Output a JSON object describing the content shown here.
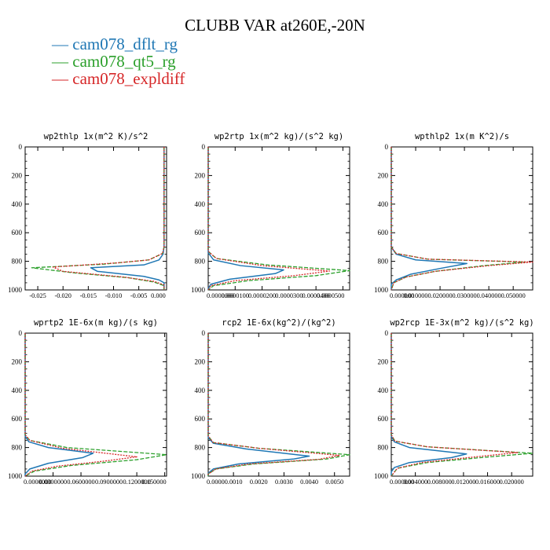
{
  "title": "CLUBB VAR at260E,-20N",
  "legend": [
    {
      "label": "— cam078_dflt_rg",
      "color": "#1f77b4"
    },
    {
      "label": "— cam078_qt5_rg",
      "color": "#2ca02c"
    },
    {
      "label": "— cam078_expldiff",
      "color": "#d62728"
    }
  ],
  "chart_data": [
    {
      "type": "line",
      "title": "wp2thlp  1x(m^2 K)/s^2",
      "xlim": [
        -0.0275,
        0.0005
      ],
      "ylim": [
        1000,
        0
      ],
      "yticks": [
        "0",
        "200",
        "400",
        "600",
        "800",
        "1000"
      ],
      "xticks": [
        {
          "v": -0.025,
          "label": "-0.025"
        },
        {
          "v": -0.02,
          "label": "-0.020"
        },
        {
          "v": -0.015,
          "label": "-0.015"
        },
        {
          "v": -0.01,
          "label": "-0.010"
        },
        {
          "v": -0.005,
          "label": "-0.005"
        },
        {
          "v": 0.0,
          "label": "0.000"
        }
      ],
      "series": [
        {
          "style": "solid",
          "color": "#1f77b4",
          "points": [
            [
              0,
              0
            ],
            [
              0,
              700
            ],
            [
              -0.0002,
              750
            ],
            [
              -0.001,
              790
            ],
            [
              -0.004,
              825
            ],
            [
              -0.0145,
              845
            ],
            [
              -0.0132,
              870
            ],
            [
              -0.004,
              905
            ],
            [
              -0.001,
              930
            ],
            [
              0,
              950
            ],
            [
              0,
              1000
            ]
          ]
        },
        {
          "style": "dashed",
          "color": "#2ca02c",
          "points": [
            [
              0,
              0
            ],
            [
              0,
              700
            ],
            [
              -0.0003,
              745
            ],
            [
              -0.003,
              790
            ],
            [
              -0.012,
              820
            ],
            [
              -0.0262,
              845
            ],
            [
              -0.018,
              880
            ],
            [
              -0.007,
              915
            ],
            [
              -0.002,
              945
            ],
            [
              0,
              970
            ],
            [
              0,
              1000
            ]
          ]
        },
        {
          "style": "dotted",
          "color": "#d62728",
          "points": [
            [
              0,
              0
            ],
            [
              0,
              700
            ],
            [
              -0.0003,
              745
            ],
            [
              -0.003,
              790
            ],
            [
              -0.009,
              810
            ],
            [
              -0.022,
              840
            ],
            [
              -0.02,
              870
            ],
            [
              -0.008,
              910
            ],
            [
              -0.002,
              940
            ],
            [
              0,
              965
            ],
            [
              0,
              1000
            ]
          ]
        }
      ]
    },
    {
      "type": "line",
      "title": "wp2rtp  1x(m^2 kg)/(s^2 kg)",
      "xlim": [
        0,
        5.25e-05
      ],
      "ylim": [
        1000,
        0
      ],
      "yticks": [
        "0",
        "200",
        "400",
        "600",
        "800",
        "1000"
      ],
      "xticks": [
        {
          "v": 0.0,
          "label": "0.0000000"
        },
        {
          "v": 1e-05,
          "label": "0.0000100"
        },
        {
          "v": 2e-05,
          "label": "0.0000200"
        },
        {
          "v": 3e-05,
          "label": "0.0000300"
        },
        {
          "v": 4e-05,
          "label": "0.0000400"
        },
        {
          "v": 5e-05,
          "label": "0.0000500"
        }
      ],
      "series": [
        {
          "style": "solid",
          "color": "#1f77b4",
          "points": [
            [
              0,
              0
            ],
            [
              0,
              740
            ],
            [
              2e-06,
              790
            ],
            [
              1.2e-05,
              830
            ],
            [
              2.8e-05,
              860
            ],
            [
              2.5e-05,
              885
            ],
            [
              8e-06,
              925
            ],
            [
              1e-06,
              960
            ],
            [
              0,
              990
            ],
            [
              0,
              1000
            ]
          ]
        },
        {
          "style": "dashed",
          "color": "#2ca02c",
          "points": [
            [
              0,
              0
            ],
            [
              0,
              730
            ],
            [
              3e-06,
              780
            ],
            [
              2.2e-05,
              825
            ],
            [
              5.25e-05,
              865
            ],
            [
              4e-05,
              900
            ],
            [
              1.5e-05,
              935
            ],
            [
              2e-06,
              970
            ],
            [
              0,
              1000
            ]
          ]
        },
        {
          "style": "dotted",
          "color": "#d62728",
          "points": [
            [
              0,
              0
            ],
            [
              0,
              730
            ],
            [
              3e-06,
              780
            ],
            [
              2e-05,
              830
            ],
            [
              4.5e-05,
              868
            ],
            [
              3.2e-05,
              900
            ],
            [
              1e-05,
              935
            ],
            [
              1e-06,
              970
            ],
            [
              0,
              1000
            ]
          ]
        }
      ]
    },
    {
      "type": "line",
      "title": "wpthlp2  1x(m K^2)/s",
      "xlim": [
        0,
        0.058
      ],
      "ylim": [
        1000,
        0
      ],
      "yticks": [
        "0",
        "200",
        "400",
        "600",
        "800",
        "1000"
      ],
      "xticks": [
        {
          "v": 0.0,
          "label": "0.000000"
        },
        {
          "v": 0.01,
          "label": "0.010000"
        },
        {
          "v": 0.02,
          "label": "0.020000"
        },
        {
          "v": 0.03,
          "label": "0.030000"
        },
        {
          "v": 0.04,
          "label": "0.040000"
        },
        {
          "v": 0.05,
          "label": "0.050000"
        }
      ],
      "series": [
        {
          "style": "solid",
          "color": "#1f77b4",
          "points": [
            [
              0,
              0
            ],
            [
              0,
              700
            ],
            [
              0.002,
              750
            ],
            [
              0.01,
              790
            ],
            [
              0.031,
              815
            ],
            [
              0.02,
              850
            ],
            [
              0.008,
              890
            ],
            [
              0.002,
              930
            ],
            [
              0,
              960
            ],
            [
              0,
              1000
            ]
          ]
        },
        {
          "style": "dashed",
          "color": "#2ca02c",
          "points": [
            [
              0,
              0
            ],
            [
              0,
              700
            ],
            [
              0.002,
              745
            ],
            [
              0.015,
              785
            ],
            [
              0.055,
              805
            ],
            [
              0.038,
              830
            ],
            [
              0.018,
              870
            ],
            [
              0.006,
              910
            ],
            [
              0.001,
              950
            ],
            [
              0,
              1000
            ]
          ]
        },
        {
          "style": "dotted",
          "color": "#d62728",
          "points": [
            [
              0,
              0
            ],
            [
              0,
              700
            ],
            [
              0.002,
              745
            ],
            [
              0.015,
              785
            ],
            [
              0.058,
              805
            ],
            [
              0.04,
              830
            ],
            [
              0.018,
              870
            ],
            [
              0.006,
              910
            ],
            [
              0.001,
              950
            ],
            [
              0,
              1000
            ]
          ]
        }
      ]
    },
    {
      "type": "line",
      "title": "wprtp2  1E-6x(m kg)/(s kg)",
      "xlim": [
        0,
        0.152
      ],
      "ylim": [
        1000,
        0
      ],
      "yticks": [
        "0",
        "200",
        "400",
        "600",
        "800",
        "1000"
      ],
      "xticks": [
        {
          "v": 0.0,
          "label": "0.0000000"
        },
        {
          "v": 0.03,
          "label": "0.0300000"
        },
        {
          "v": 0.06,
          "label": "0.0600000"
        },
        {
          "v": 0.09,
          "label": "0.0900000"
        },
        {
          "v": 0.12,
          "label": "0.1200000"
        },
        {
          "v": 0.15,
          "label": "0.150000"
        }
      ],
      "series": [
        {
          "style": "solid",
          "color": "#1f77b4",
          "points": [
            [
              0,
              0
            ],
            [
              0,
              720
            ],
            [
              0.004,
              760
            ],
            [
              0.025,
              800
            ],
            [
              0.073,
              840
            ],
            [
              0.062,
              870
            ],
            [
              0.025,
              910
            ],
            [
              0.005,
              950
            ],
            [
              0,
              985
            ],
            [
              0,
              1000
            ]
          ]
        },
        {
          "style": "dashed",
          "color": "#2ca02c",
          "points": [
            [
              0,
              0
            ],
            [
              0,
              710
            ],
            [
              0.005,
              750
            ],
            [
              0.045,
              800
            ],
            [
              0.152,
              850
            ],
            [
              0.12,
              885
            ],
            [
              0.05,
              925
            ],
            [
              0.01,
              965
            ],
            [
              0,
              1000
            ]
          ]
        },
        {
          "style": "dotted",
          "color": "#d62728",
          "points": [
            [
              0,
              0
            ],
            [
              0,
              710
            ],
            [
              0.005,
              750
            ],
            [
              0.04,
              805
            ],
            [
              0.12,
              865
            ],
            [
              0.085,
              895
            ],
            [
              0.035,
              930
            ],
            [
              0.007,
              965
            ],
            [
              0,
              1000
            ]
          ]
        }
      ]
    },
    {
      "type": "line",
      "title": "rcp2  1E-6x(kg^2)/(kg^2)",
      "xlim": [
        0,
        0.0056
      ],
      "ylim": [
        1000,
        0
      ],
      "yticks": [
        "0",
        "200",
        "400",
        "600",
        "800",
        "1000"
      ],
      "xticks": [
        {
          "v": 0.0,
          "label": "0.0000"
        },
        {
          "v": 0.001,
          "label": "0.0010"
        },
        {
          "v": 0.002,
          "label": "0.0020"
        },
        {
          "v": 0.003,
          "label": "0.0030"
        },
        {
          "v": 0.004,
          "label": "0.0040"
        },
        {
          "v": 0.005,
          "label": "0.0050"
        }
      ],
      "series": [
        {
          "style": "solid",
          "color": "#1f77b4",
          "points": [
            [
              0,
              0
            ],
            [
              0,
              730
            ],
            [
              0.0002,
              770
            ],
            [
              0.0015,
              810
            ],
            [
              0.004,
              860
            ],
            [
              0.0034,
              880
            ],
            [
              0.0012,
              915
            ],
            [
              0.0002,
              950
            ],
            [
              0,
              980
            ],
            [
              0,
              1000
            ]
          ]
        },
        {
          "style": "dashed",
          "color": "#2ca02c",
          "points": [
            [
              0,
              0
            ],
            [
              0,
              720
            ],
            [
              0.0002,
              765
            ],
            [
              0.002,
              805
            ],
            [
              0.0056,
              850
            ],
            [
              0.0047,
              880
            ],
            [
              0.0018,
              915
            ],
            [
              0.0003,
              950
            ],
            [
              0,
              985
            ],
            [
              0,
              1000
            ]
          ]
        },
        {
          "style": "dotted",
          "color": "#d62728",
          "points": [
            [
              0,
              0
            ],
            [
              0,
              720
            ],
            [
              0.0002,
              765
            ],
            [
              0.002,
              805
            ],
            [
              0.0052,
              855
            ],
            [
              0.0044,
              882
            ],
            [
              0.0016,
              915
            ],
            [
              0.0003,
              950
            ],
            [
              0,
              985
            ],
            [
              0,
              1000
            ]
          ]
        }
      ]
    },
    {
      "type": "line",
      "title": "wp2rcp  1E-3x(m^2 kg)/(s^2 kg)",
      "xlim": [
        0,
        0.0235
      ],
      "ylim": [
        1000,
        0
      ],
      "yticks": [
        "0",
        "200",
        "400",
        "600",
        "800",
        "1000"
      ],
      "xticks": [
        {
          "v": 0.0,
          "label": "0.000000"
        },
        {
          "v": 0.004,
          "label": "0.004000"
        },
        {
          "v": 0.008,
          "label": "0.008000"
        },
        {
          "v": 0.012,
          "label": "0.012000"
        },
        {
          "v": 0.016,
          "label": "0.016000"
        },
        {
          "v": 0.02,
          "label": "0.020000"
        }
      ],
      "series": [
        {
          "style": "solid",
          "color": "#1f77b4",
          "points": [
            [
              0,
              0
            ],
            [
              0,
              720
            ],
            [
              0.0005,
              760
            ],
            [
              0.003,
              800
            ],
            [
              0.0125,
              845
            ],
            [
              0.01,
              870
            ],
            [
              0.003,
              905
            ],
            [
              0.0005,
              940
            ],
            [
              0,
              970
            ],
            [
              0,
              1000
            ]
          ]
        },
        {
          "style": "dashed",
          "color": "#2ca02c",
          "points": [
            [
              0,
              0
            ],
            [
              0,
              710
            ],
            [
              0.0006,
              755
            ],
            [
              0.006,
              795
            ],
            [
              0.0235,
              840
            ],
            [
              0.015,
              870
            ],
            [
              0.006,
              905
            ],
            [
              0.001,
              945
            ],
            [
              0,
              1000
            ]
          ]
        },
        {
          "style": "dotted",
          "color": "#d62728",
          "points": [
            [
              0,
              0
            ],
            [
              0,
              710
            ],
            [
              0.0006,
              755
            ],
            [
              0.006,
              795
            ],
            [
              0.021,
              835
            ],
            [
              0.014,
              865
            ],
            [
              0.005,
              905
            ],
            [
              0.001,
              945
            ],
            [
              0,
              1000
            ]
          ]
        }
      ]
    }
  ]
}
